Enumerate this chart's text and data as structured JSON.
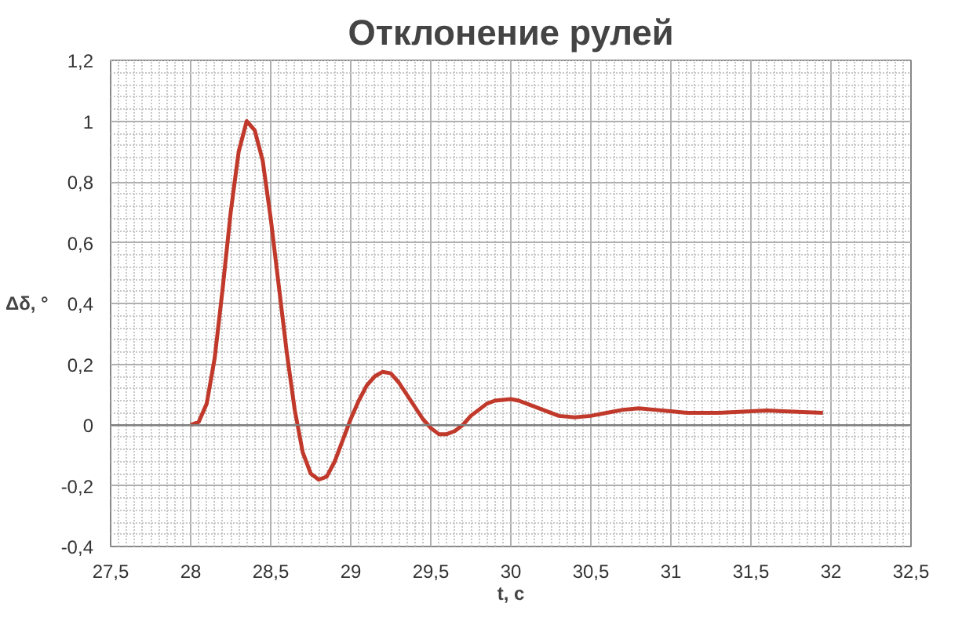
{
  "chart_data": {
    "type": "line",
    "title": "Отклонение рулей",
    "xlabel": "t, с",
    "ylabel": "Δδ, °",
    "x": [
      28,
      28.05,
      28.1,
      28.15,
      28.2,
      28.25,
      28.3,
      28.35,
      28.4,
      28.45,
      28.5,
      28.55,
      28.6,
      28.65,
      28.7,
      28.75,
      28.8,
      28.85,
      28.9,
      28.95,
      29,
      29.05,
      29.1,
      29.15,
      29.2,
      29.25,
      29.3,
      29.35,
      29.4,
      29.45,
      29.5,
      29.55,
      29.6,
      29.65,
      29.7,
      29.75,
      29.8,
      29.85,
      29.9,
      30,
      30.05,
      30.1,
      30.2,
      30.3,
      30.4,
      30.5,
      30.6,
      30.7,
      30.8,
      30.9,
      31,
      31.1,
      31.3,
      31.5,
      31.6,
      31.7,
      31.95
    ],
    "series": [
      {
        "color": "#c0392b",
        "values": [
          0,
          0.01,
          0.07,
          0.22,
          0.45,
          0.7,
          0.9,
          1.0,
          0.97,
          0.87,
          0.68,
          0.46,
          0.24,
          0.05,
          -0.09,
          -0.16,
          -0.18,
          -0.17,
          -0.12,
          -0.05,
          0.02,
          0.08,
          0.13,
          0.16,
          0.175,
          0.17,
          0.14,
          0.1,
          0.06,
          0.02,
          -0.01,
          -0.03,
          -0.03,
          -0.02,
          0.0,
          0.03,
          0.05,
          0.07,
          0.08,
          0.085,
          0.08,
          0.07,
          0.05,
          0.03,
          0.025,
          0.03,
          0.04,
          0.05,
          0.055,
          0.05,
          0.045,
          0.04,
          0.04,
          0.045,
          0.048,
          0.045,
          0.04
        ]
      }
    ],
    "xlim": [
      27.5,
      32.5
    ],
    "ylim": [
      -0.4,
      1.2
    ],
    "xticks": [
      {
        "value": 27.5,
        "label": "27,5"
      },
      28,
      {
        "value": 28.5,
        "label": "28,5"
      },
      29,
      {
        "value": 29.5,
        "label": "29,5"
      },
      30,
      {
        "value": 30.5,
        "label": "30,5"
      },
      31,
      {
        "value": 31.5,
        "label": "31,5"
      },
      32,
      {
        "value": 32.5,
        "label": "32,5"
      }
    ],
    "yticks": [
      {
        "value": -0.4,
        "label": "-0,4"
      },
      {
        "value": -0.2,
        "label": "-0,2"
      },
      0,
      {
        "value": 0.2,
        "label": "0,2"
      },
      {
        "value": 0.4,
        "label": "0,4"
      },
      {
        "value": 0.6,
        "label": "0,6"
      },
      {
        "value": 0.8,
        "label": "0,8"
      },
      1,
      {
        "value": 1.2,
        "label": "1,2"
      }
    ],
    "grid": true,
    "line_style": "solid"
  }
}
